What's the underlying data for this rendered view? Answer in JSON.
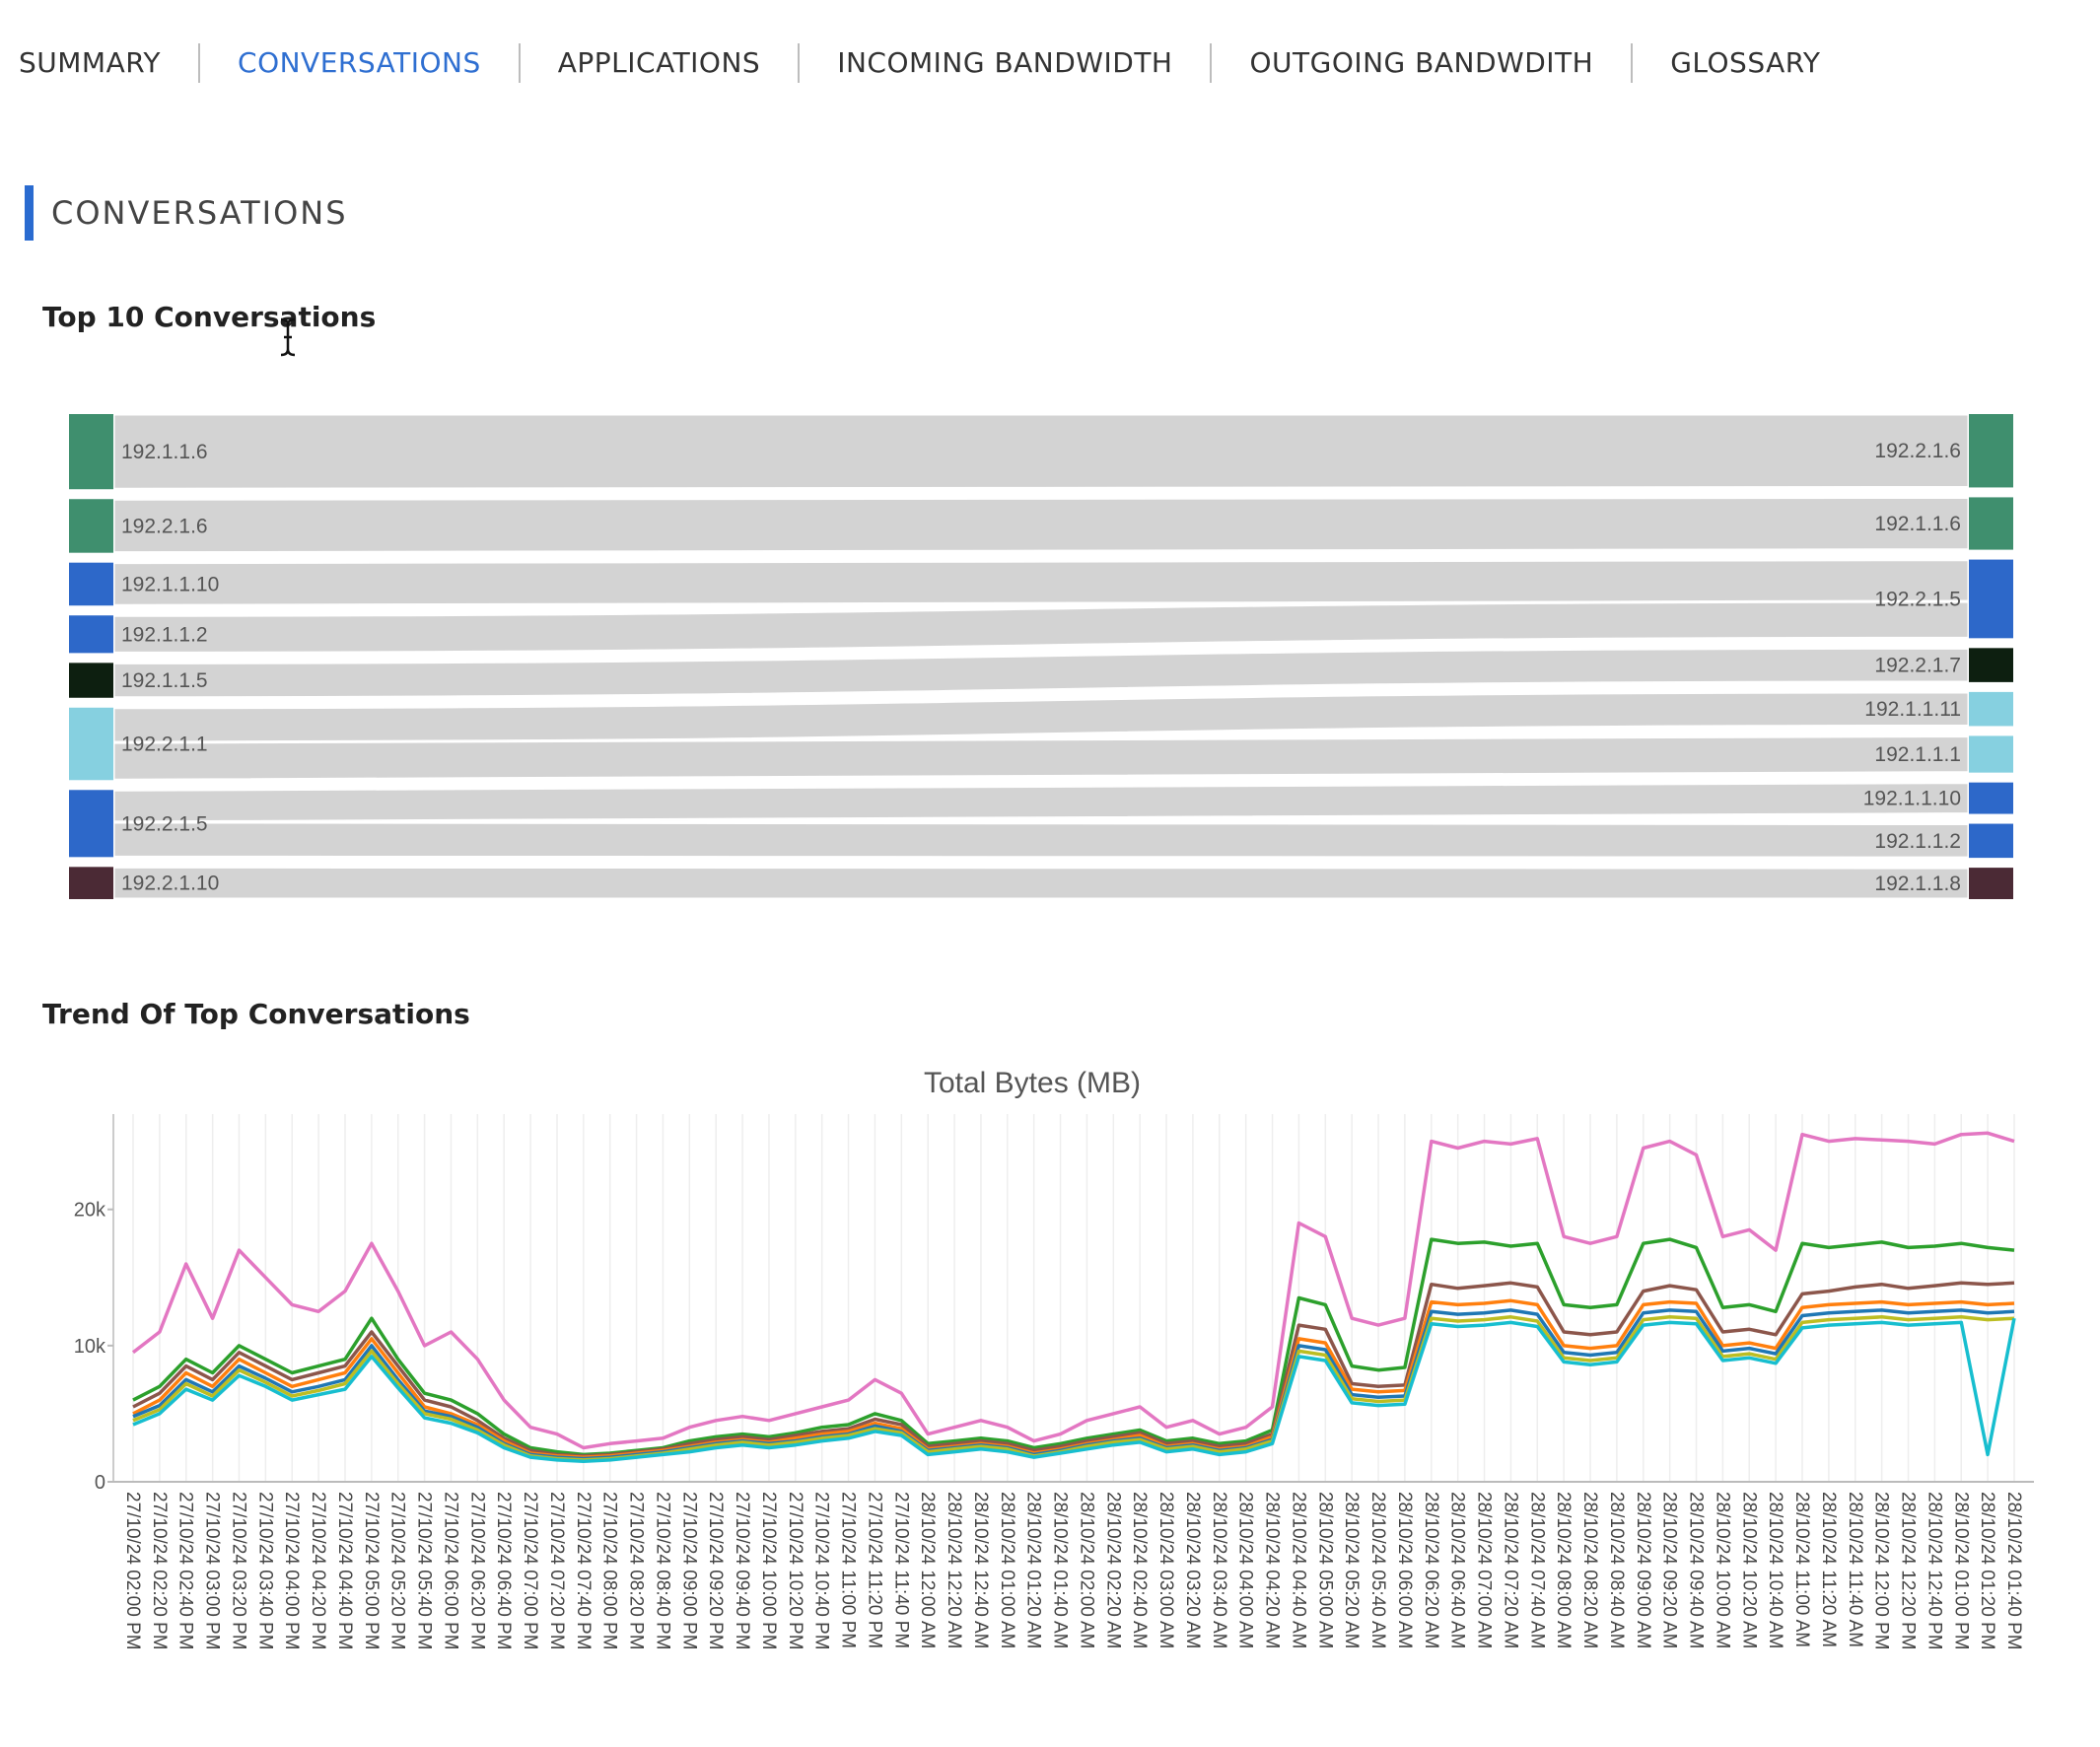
{
  "tabs": [
    {
      "label": "SUMMARY",
      "active": false
    },
    {
      "label": "CONVERSATIONS",
      "active": true
    },
    {
      "label": "APPLICATIONS",
      "active": false
    },
    {
      "label": "INCOMING BANDWIDTH",
      "active": false
    },
    {
      "label": "OUTGOING BANDWDITH",
      "active": false
    },
    {
      "label": "GLOSSARY",
      "active": false
    }
  ],
  "section_title": "CONVERSATIONS",
  "top_conversations": {
    "title": "Top 10 Conversations",
    "sources": [
      {
        "label": "192.1.1.6",
        "color": "#3f8f6e",
        "weight": 28
      },
      {
        "label": "192.2.1.6",
        "color": "#3f8f6e",
        "weight": 20
      },
      {
        "label": "192.1.1.10",
        "color": "#2d68c9",
        "weight": 16
      },
      {
        "label": "192.1.1.2",
        "color": "#2d68c9",
        "weight": 14
      },
      {
        "label": "192.1.1.5",
        "color": "#0d1f10",
        "weight": 13
      },
      {
        "label": "192.2.1.1",
        "color": "#86d0e0",
        "weight": 27
      },
      {
        "label": "192.2.1.5",
        "color": "#2d68c9",
        "weight": 25
      },
      {
        "label": "192.2.1.10",
        "color": "#4b2a35",
        "weight": 12
      }
    ],
    "targets": [
      {
        "label": "192.2.1.6",
        "color": "#3f8f6e",
        "weight": 28
      },
      {
        "label": "192.1.1.6",
        "color": "#3f8f6e",
        "weight": 20
      },
      {
        "label": "192.2.1.5",
        "color": "#2d68c9",
        "weight": 30
      },
      {
        "label": "192.2.1.7",
        "color": "#0d1f10",
        "weight": 13
      },
      {
        "label": "192.1.1.11",
        "color": "#86d0e0",
        "weight": 13
      },
      {
        "label": "192.1.1.1",
        "color": "#86d0e0",
        "weight": 14
      },
      {
        "label": "192.1.1.10",
        "color": "#2d68c9",
        "weight": 12
      },
      {
        "label": "192.1.1.2",
        "color": "#2d68c9",
        "weight": 13
      },
      {
        "label": "192.1.1.8",
        "color": "#4b2a35",
        "weight": 12
      }
    ],
    "links": [
      {
        "source": "192.1.1.6",
        "target": "192.2.1.6",
        "value": 28
      },
      {
        "source": "192.2.1.6",
        "target": "192.1.1.6",
        "value": 20
      },
      {
        "source": "192.1.1.10",
        "target": "192.2.1.5",
        "value": 16
      },
      {
        "source": "192.1.1.2",
        "target": "192.2.1.5",
        "value": 14
      },
      {
        "source": "192.1.1.5",
        "target": "192.2.1.7",
        "value": 13
      },
      {
        "source": "192.2.1.1",
        "target": "192.1.1.11",
        "value": 13
      },
      {
        "source": "192.2.1.1",
        "target": "192.1.1.1",
        "value": 14
      },
      {
        "source": "192.2.1.5",
        "target": "192.1.1.10",
        "value": 12
      },
      {
        "source": "192.2.1.5",
        "target": "192.1.1.2",
        "value": 13
      },
      {
        "source": "192.2.1.10",
        "target": "192.1.1.8",
        "value": 12
      }
    ]
  },
  "trend": {
    "title": "Trend Of Top Conversations"
  },
  "chart_data": {
    "type": "line",
    "title": "Total Bytes (MB)",
    "xlabel": "",
    "ylabel": "",
    "ylim": [
      0,
      27000
    ],
    "yticks": [
      {
        "v": 0,
        "label": "0"
      },
      {
        "v": 10000,
        "label": "10k"
      },
      {
        "v": 20000,
        "label": "20k"
      }
    ],
    "grid": true,
    "categories": [
      "27/10/24 02:00 PM",
      "27/10/24 02:20 PM",
      "27/10/24 02:40 PM",
      "27/10/24 03:00 PM",
      "27/10/24 03:20 PM",
      "27/10/24 03:40 PM",
      "27/10/24 04:00 PM",
      "27/10/24 04:20 PM",
      "27/10/24 04:40 PM",
      "27/10/24 05:00 PM",
      "27/10/24 05:20 PM",
      "27/10/24 05:40 PM",
      "27/10/24 06:00 PM",
      "27/10/24 06:20 PM",
      "27/10/24 06:40 PM",
      "27/10/24 07:00 PM",
      "27/10/24 07:20 PM",
      "27/10/24 07:40 PM",
      "27/10/24 08:00 PM",
      "27/10/24 08:20 PM",
      "27/10/24 08:40 PM",
      "27/10/24 09:00 PM",
      "27/10/24 09:20 PM",
      "27/10/24 09:40 PM",
      "27/10/24 10:00 PM",
      "27/10/24 10:20 PM",
      "27/10/24 10:40 PM",
      "27/10/24 11:00 PM",
      "27/10/24 11:20 PM",
      "27/10/24 11:40 PM",
      "28/10/24 12:00 AM",
      "28/10/24 12:20 AM",
      "28/10/24 12:40 AM",
      "28/10/24 01:00 AM",
      "28/10/24 01:20 AM",
      "28/10/24 01:40 AM",
      "28/10/24 02:00 AM",
      "28/10/24 02:20 AM",
      "28/10/24 02:40 AM",
      "28/10/24 03:00 AM",
      "28/10/24 03:20 AM",
      "28/10/24 03:40 AM",
      "28/10/24 04:00 AM",
      "28/10/24 04:20 AM",
      "28/10/24 04:40 AM",
      "28/10/24 05:00 AM",
      "28/10/24 05:20 AM",
      "28/10/24 05:40 AM",
      "28/10/24 06:00 AM",
      "28/10/24 06:20 AM",
      "28/10/24 06:40 AM",
      "28/10/24 07:00 AM",
      "28/10/24 07:20 AM",
      "28/10/24 07:40 AM",
      "28/10/24 08:00 AM",
      "28/10/24 08:20 AM",
      "28/10/24 08:40 AM",
      "28/10/24 09:00 AM",
      "28/10/24 09:20 AM",
      "28/10/24 09:40 AM",
      "28/10/24 10:00 AM",
      "28/10/24 10:20 AM",
      "28/10/24 10:40 AM",
      "28/10/24 11:00 AM",
      "28/10/24 11:20 AM",
      "28/10/24 11:40 AM",
      "28/10/24 12:00 PM",
      "28/10/24 12:20 PM",
      "28/10/24 12:40 PM",
      "28/10/24 01:00 PM",
      "28/10/24 01:20 PM",
      "28/10/24 01:40 PM"
    ],
    "series": [
      {
        "name": "pink",
        "color": "#e377c2",
        "values": [
          9500,
          11000,
          16000,
          12000,
          17000,
          15000,
          13000,
          12500,
          14000,
          17500,
          14000,
          10000,
          11000,
          9000,
          6000,
          4000,
          3500,
          2500,
          2800,
          3000,
          3200,
          4000,
          4500,
          4800,
          4500,
          5000,
          5500,
          6000,
          7500,
          6500,
          3500,
          4000,
          4500,
          4000,
          3000,
          3500,
          4500,
          5000,
          5500,
          4000,
          4500,
          3500,
          4000,
          5500,
          19000,
          18000,
          12000,
          11500,
          12000,
          25000,
          24500,
          25000,
          24800,
          25200,
          18000,
          17500,
          18000,
          24500,
          25000,
          24000,
          18000,
          18500,
          17000,
          25500,
          25000,
          25200,
          25100,
          25000,
          24800,
          25500,
          25600,
          25000
        ]
      },
      {
        "name": "green",
        "color": "#2ca02c",
        "values": [
          6000,
          7000,
          9000,
          8000,
          10000,
          9000,
          8000,
          8500,
          9000,
          12000,
          9000,
          6500,
          6000,
          5000,
          3500,
          2500,
          2200,
          2000,
          2100,
          2300,
          2500,
          3000,
          3300,
          3500,
          3300,
          3600,
          4000,
          4200,
          5000,
          4500,
          2800,
          3000,
          3200,
          3000,
          2500,
          2800,
          3200,
          3500,
          3800,
          3000,
          3200,
          2800,
          3000,
          3800,
          13500,
          13000,
          8500,
          8200,
          8400,
          17800,
          17500,
          17600,
          17300,
          17500,
          13000,
          12800,
          13000,
          17500,
          17800,
          17200,
          12800,
          13000,
          12500,
          17500,
          17200,
          17400,
          17600,
          17200,
          17300,
          17500,
          17200,
          17000
        ]
      },
      {
        "name": "brown",
        "color": "#8c564b",
        "values": [
          5500,
          6500,
          8500,
          7500,
          9500,
          8500,
          7500,
          8000,
          8500,
          11000,
          8500,
          6000,
          5500,
          4500,
          3200,
          2300,
          2000,
          1900,
          2000,
          2200,
          2400,
          2800,
          3100,
          3300,
          3100,
          3400,
          3700,
          3900,
          4600,
          4200,
          2600,
          2800,
          3000,
          2800,
          2300,
          2600,
          3000,
          3300,
          3600,
          2800,
          3000,
          2600,
          2800,
          3500,
          11500,
          11200,
          7200,
          7000,
          7100,
          14500,
          14200,
          14400,
          14600,
          14300,
          11000,
          10800,
          11000,
          14000,
          14400,
          14100,
          11000,
          11200,
          10800,
          13800,
          14000,
          14300,
          14500,
          14200,
          14400,
          14600,
          14500,
          14600
        ]
      },
      {
        "name": "orange",
        "color": "#ff7f0e",
        "values": [
          5000,
          6000,
          8000,
          7000,
          9000,
          8000,
          7000,
          7500,
          8000,
          10500,
          8000,
          5500,
          5000,
          4200,
          3000,
          2100,
          1900,
          1800,
          1900,
          2100,
          2300,
          2600,
          2900,
          3100,
          2900,
          3200,
          3500,
          3700,
          4300,
          3900,
          2400,
          2600,
          2800,
          2600,
          2100,
          2400,
          2800,
          3100,
          3400,
          2600,
          2800,
          2400,
          2600,
          3300,
          10500,
          10200,
          6800,
          6600,
          6700,
          13200,
          13000,
          13100,
          13300,
          13000,
          10000,
          9800,
          10000,
          13000,
          13200,
          13100,
          10000,
          10200,
          9800,
          12800,
          13000,
          13100,
          13200,
          13000,
          13100,
          13200,
          13000,
          13100
        ]
      },
      {
        "name": "blue",
        "color": "#1f77b4",
        "values": [
          4800,
          5600,
          7500,
          6600,
          8500,
          7600,
          6600,
          7000,
          7500,
          10000,
          7500,
          5200,
          4800,
          4000,
          2800,
          2000,
          1800,
          1700,
          1800,
          2000,
          2200,
          2500,
          2800,
          3000,
          2800,
          3000,
          3300,
          3500,
          4100,
          3700,
          2300,
          2500,
          2700,
          2500,
          2000,
          2300,
          2700,
          3000,
          3200,
          2500,
          2700,
          2300,
          2500,
          3100,
          10000,
          9700,
          6400,
          6200,
          6300,
          12500,
          12300,
          12400,
          12600,
          12300,
          9500,
          9300,
          9500,
          12400,
          12600,
          12500,
          9600,
          9800,
          9400,
          12200,
          12400,
          12500,
          12600,
          12400,
          12500,
          12600,
          12400,
          12500
        ]
      },
      {
        "name": "yellow",
        "color": "#bcbd22",
        "values": [
          4500,
          5300,
          7200,
          6300,
          8200,
          7300,
          6300,
          6700,
          7200,
          9600,
          7200,
          5000,
          4600,
          3800,
          2700,
          1900,
          1700,
          1600,
          1700,
          1900,
          2100,
          2400,
          2700,
          2900,
          2700,
          2900,
          3200,
          3400,
          3900,
          3600,
          2200,
          2400,
          2600,
          2400,
          1900,
          2200,
          2600,
          2900,
          3100,
          2400,
          2600,
          2200,
          2400,
          3000,
          9600,
          9300,
          6100,
          5900,
          6000,
          12000,
          11800,
          11900,
          12100,
          11800,
          9100,
          8900,
          9100,
          11900,
          12100,
          12000,
          9200,
          9400,
          9000,
          11700,
          11900,
          12000,
          12100,
          11900,
          12000,
          12100,
          11900,
          12000
        ]
      },
      {
        "name": "teal",
        "color": "#17becf",
        "values": [
          4200,
          5000,
          6800,
          6000,
          7800,
          7000,
          6000,
          6400,
          6800,
          9200,
          6900,
          4700,
          4300,
          3600,
          2500,
          1800,
          1600,
          1500,
          1600,
          1800,
          2000,
          2200,
          2500,
          2700,
          2500,
          2700,
          3000,
          3200,
          3700,
          3400,
          2000,
          2200,
          2400,
          2200,
          1800,
          2100,
          2400,
          2700,
          2900,
          2200,
          2400,
          2000,
          2200,
          2800,
          9200,
          8900,
          5800,
          5600,
          5700,
          11600,
          11400,
          11500,
          11700,
          11400,
          8800,
          8600,
          8800,
          11500,
          11700,
          11600,
          8900,
          9100,
          8700,
          11300,
          11500,
          11600,
          11700,
          11500,
          11600,
          11700,
          2000,
          12000
        ]
      }
    ]
  }
}
